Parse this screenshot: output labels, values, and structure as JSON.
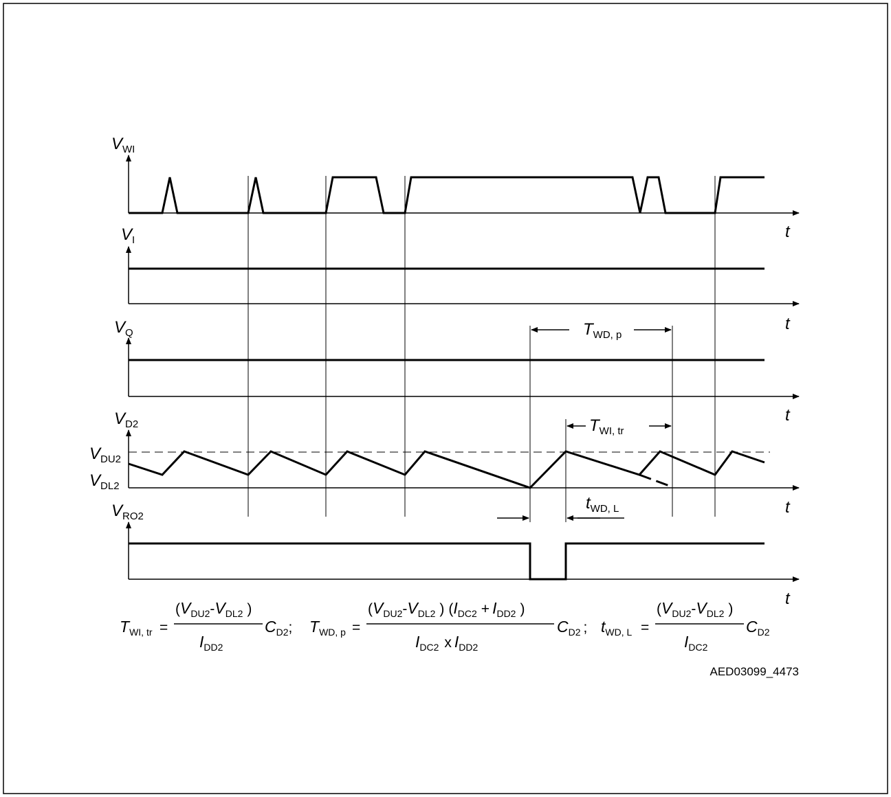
{
  "signals": {
    "vwi": {
      "main": "V",
      "sub": "WI"
    },
    "vi": {
      "main": "V",
      "sub": "I"
    },
    "vq": {
      "main": "V",
      "sub": "Q"
    },
    "vd2": {
      "main": "V",
      "sub": "D2"
    },
    "vro2": {
      "main": "V",
      "sub": "RO2"
    }
  },
  "time_label": "t",
  "levels": {
    "vdu2": {
      "main": "V",
      "sub": "DU2"
    },
    "vdl2": {
      "main": "V",
      "sub": "DL2"
    }
  },
  "annotations": {
    "twd_p": {
      "main": "T",
      "sub": "WD, p"
    },
    "twi_tr": {
      "main": "T",
      "sub": "WI, tr"
    },
    "twd_l": {
      "main": "t",
      "sub": "WD, L"
    }
  },
  "formula": {
    "eq1_lhs": {
      "main": "T",
      "sub": "WI, tr"
    },
    "eq2_lhs": {
      "main": "T",
      "sub": "WD, p"
    },
    "eq3_lhs": {
      "main": "t",
      "sub": "WD, L"
    },
    "equals": "=",
    "open_paren": "(",
    "close_paren": ")",
    "minus": "-",
    "plus": "+",
    "times": "x",
    "semicolon": ";",
    "v": "V",
    "i": "I",
    "c": "C",
    "du2": "DU2",
    "dl2": "DL2",
    "dd2": "DD2",
    "dc2": "DC2",
    "d2": "D2"
  },
  "figure_code": "AED03099_4473"
}
